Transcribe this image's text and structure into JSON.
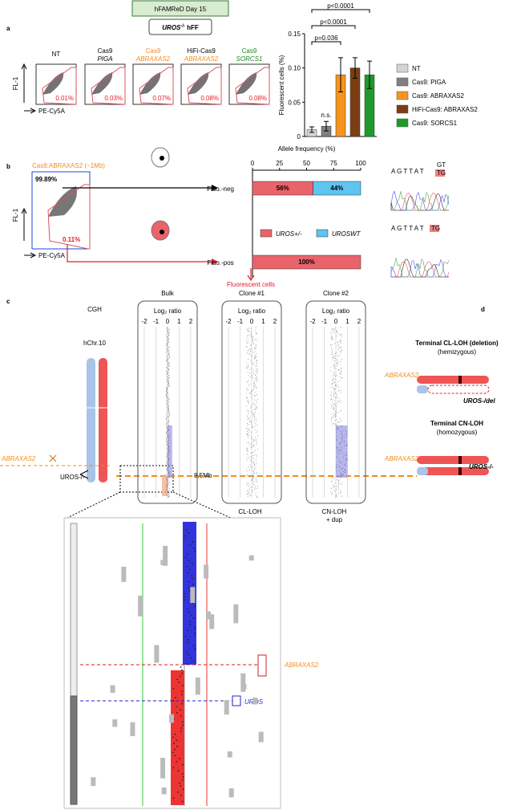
{
  "figure": {
    "panel_labels": [
      "a",
      "b",
      "c",
      "d"
    ],
    "a": {
      "condition": "hFAMReD Day 15",
      "cells_gene": "UROS",
      "cells_sup": "-/-",
      "cells_rest": "hFF",
      "flow": [
        {
          "line1": "NT",
          "line2": null,
          "pct": "0.01%"
        },
        {
          "line1": "Cas9",
          "line2": "PIGA",
          "pct": "0.03%"
        },
        {
          "line1": "Cas9",
          "line2": "ABRAXAS2",
          "pct": "0.07%"
        },
        {
          "line1": "HiFi-Cas9",
          "line2": "ABRAXAS2",
          "pct": "0.08%"
        },
        {
          "line1": "Cas9",
          "line2": "SORCS1",
          "pct": "0.08%"
        }
      ],
      "y_axis": "FL-1",
      "x_axis": "PE-Cy5A"
    },
    "b": {
      "plot_title": "Cas9:ABRAXAS2  (~1Mb)",
      "upper_pct": "99.89%",
      "lower_pct": "0.11%",
      "y_axis": "FL-1",
      "x_axis": "PE-Cy5A",
      "result": "Fluorescent cells",
      "seq1_bases": "A G T T A T",
      "seq1_top": "GT",
      "seq1_bottom": "TG",
      "seq2_bases": "A G  T T  A T",
      "seq2_end": "TG"
    },
    "c": {
      "cgh": "CGH",
      "chromosome": "hChr.10",
      "gene": "ABRAXAS2",
      "uros": "UROS-/-",
      "samples": [
        "Bulk",
        "Clone #1",
        "Clone #2"
      ],
      "log_title": "Log₂ ratio",
      "log_ticks": [
        "-2",
        "-1",
        "0",
        "1",
        "2"
      ],
      "size": "8.5Mb",
      "clone1_call": "CL-LOH",
      "clone2_call1": "CN-LOH",
      "clone2_call2": "+ dup"
    },
    "d": {
      "title1": "Terminal CL-LOH (deletion)",
      "sub1": "(hemizygous)",
      "gene1": "ABRAXAS2",
      "allele1": "UROS-/del",
      "title2": "Terminal CN-LOH",
      "sub2": "(homozygous)",
      "gene2": "ABRAXAS2",
      "allele2": "UROS-/-"
    },
    "zoom": {
      "gene1": "ABRAXAS2",
      "gene2": "UROS"
    }
  },
  "chart_data": [
    {
      "type": "bar",
      "y_label": "Fluorescent cells (%)",
      "categories": [
        "NT",
        "Cas9: PIGA",
        "Cas9: ABRAXAS2",
        "HiFi-Cas9: ABRAXAS2",
        "Cas9: SORCS1"
      ],
      "values": [
        0.01,
        0.015,
        0.09,
        0.1,
        0.09
      ],
      "errors": [
        0.004,
        0.007,
        0.025,
        0.015,
        0.02
      ],
      "colors": [
        "#d4d4d4",
        "#808080",
        "#f7941d",
        "#7a3e12",
        "#1e9a2a"
      ],
      "ylim": [
        0,
        0.15
      ],
      "yticks": [
        0,
        0.05,
        {
          "value": 0.1,
          "label": "0.10"
        },
        0.15
      ],
      "annotations": [
        "n.s.",
        "p=0.036",
        "p<0.0001",
        "p<0.0001"
      ]
    },
    {
      "type": "hbar_stacked",
      "x_label": "Allele frequency (%)",
      "categories": [
        "Fluo.-neg",
        "Fluo.-pos"
      ],
      "series": [
        {
          "name": "UROS+/-",
          "color": "#e9636b",
          "values": [
            56,
            100
          ],
          "value_labels": [
            "56%",
            "100%"
          ]
        },
        {
          "name": "UROSWT",
          "color": "#5ec4f0",
          "values": [
            44,
            0
          ],
          "value_labels": [
            "44%",
            null
          ]
        }
      ],
      "xlim": [
        0,
        100
      ],
      "xticks": [
        0,
        25,
        50,
        75,
        100
      ]
    }
  ]
}
